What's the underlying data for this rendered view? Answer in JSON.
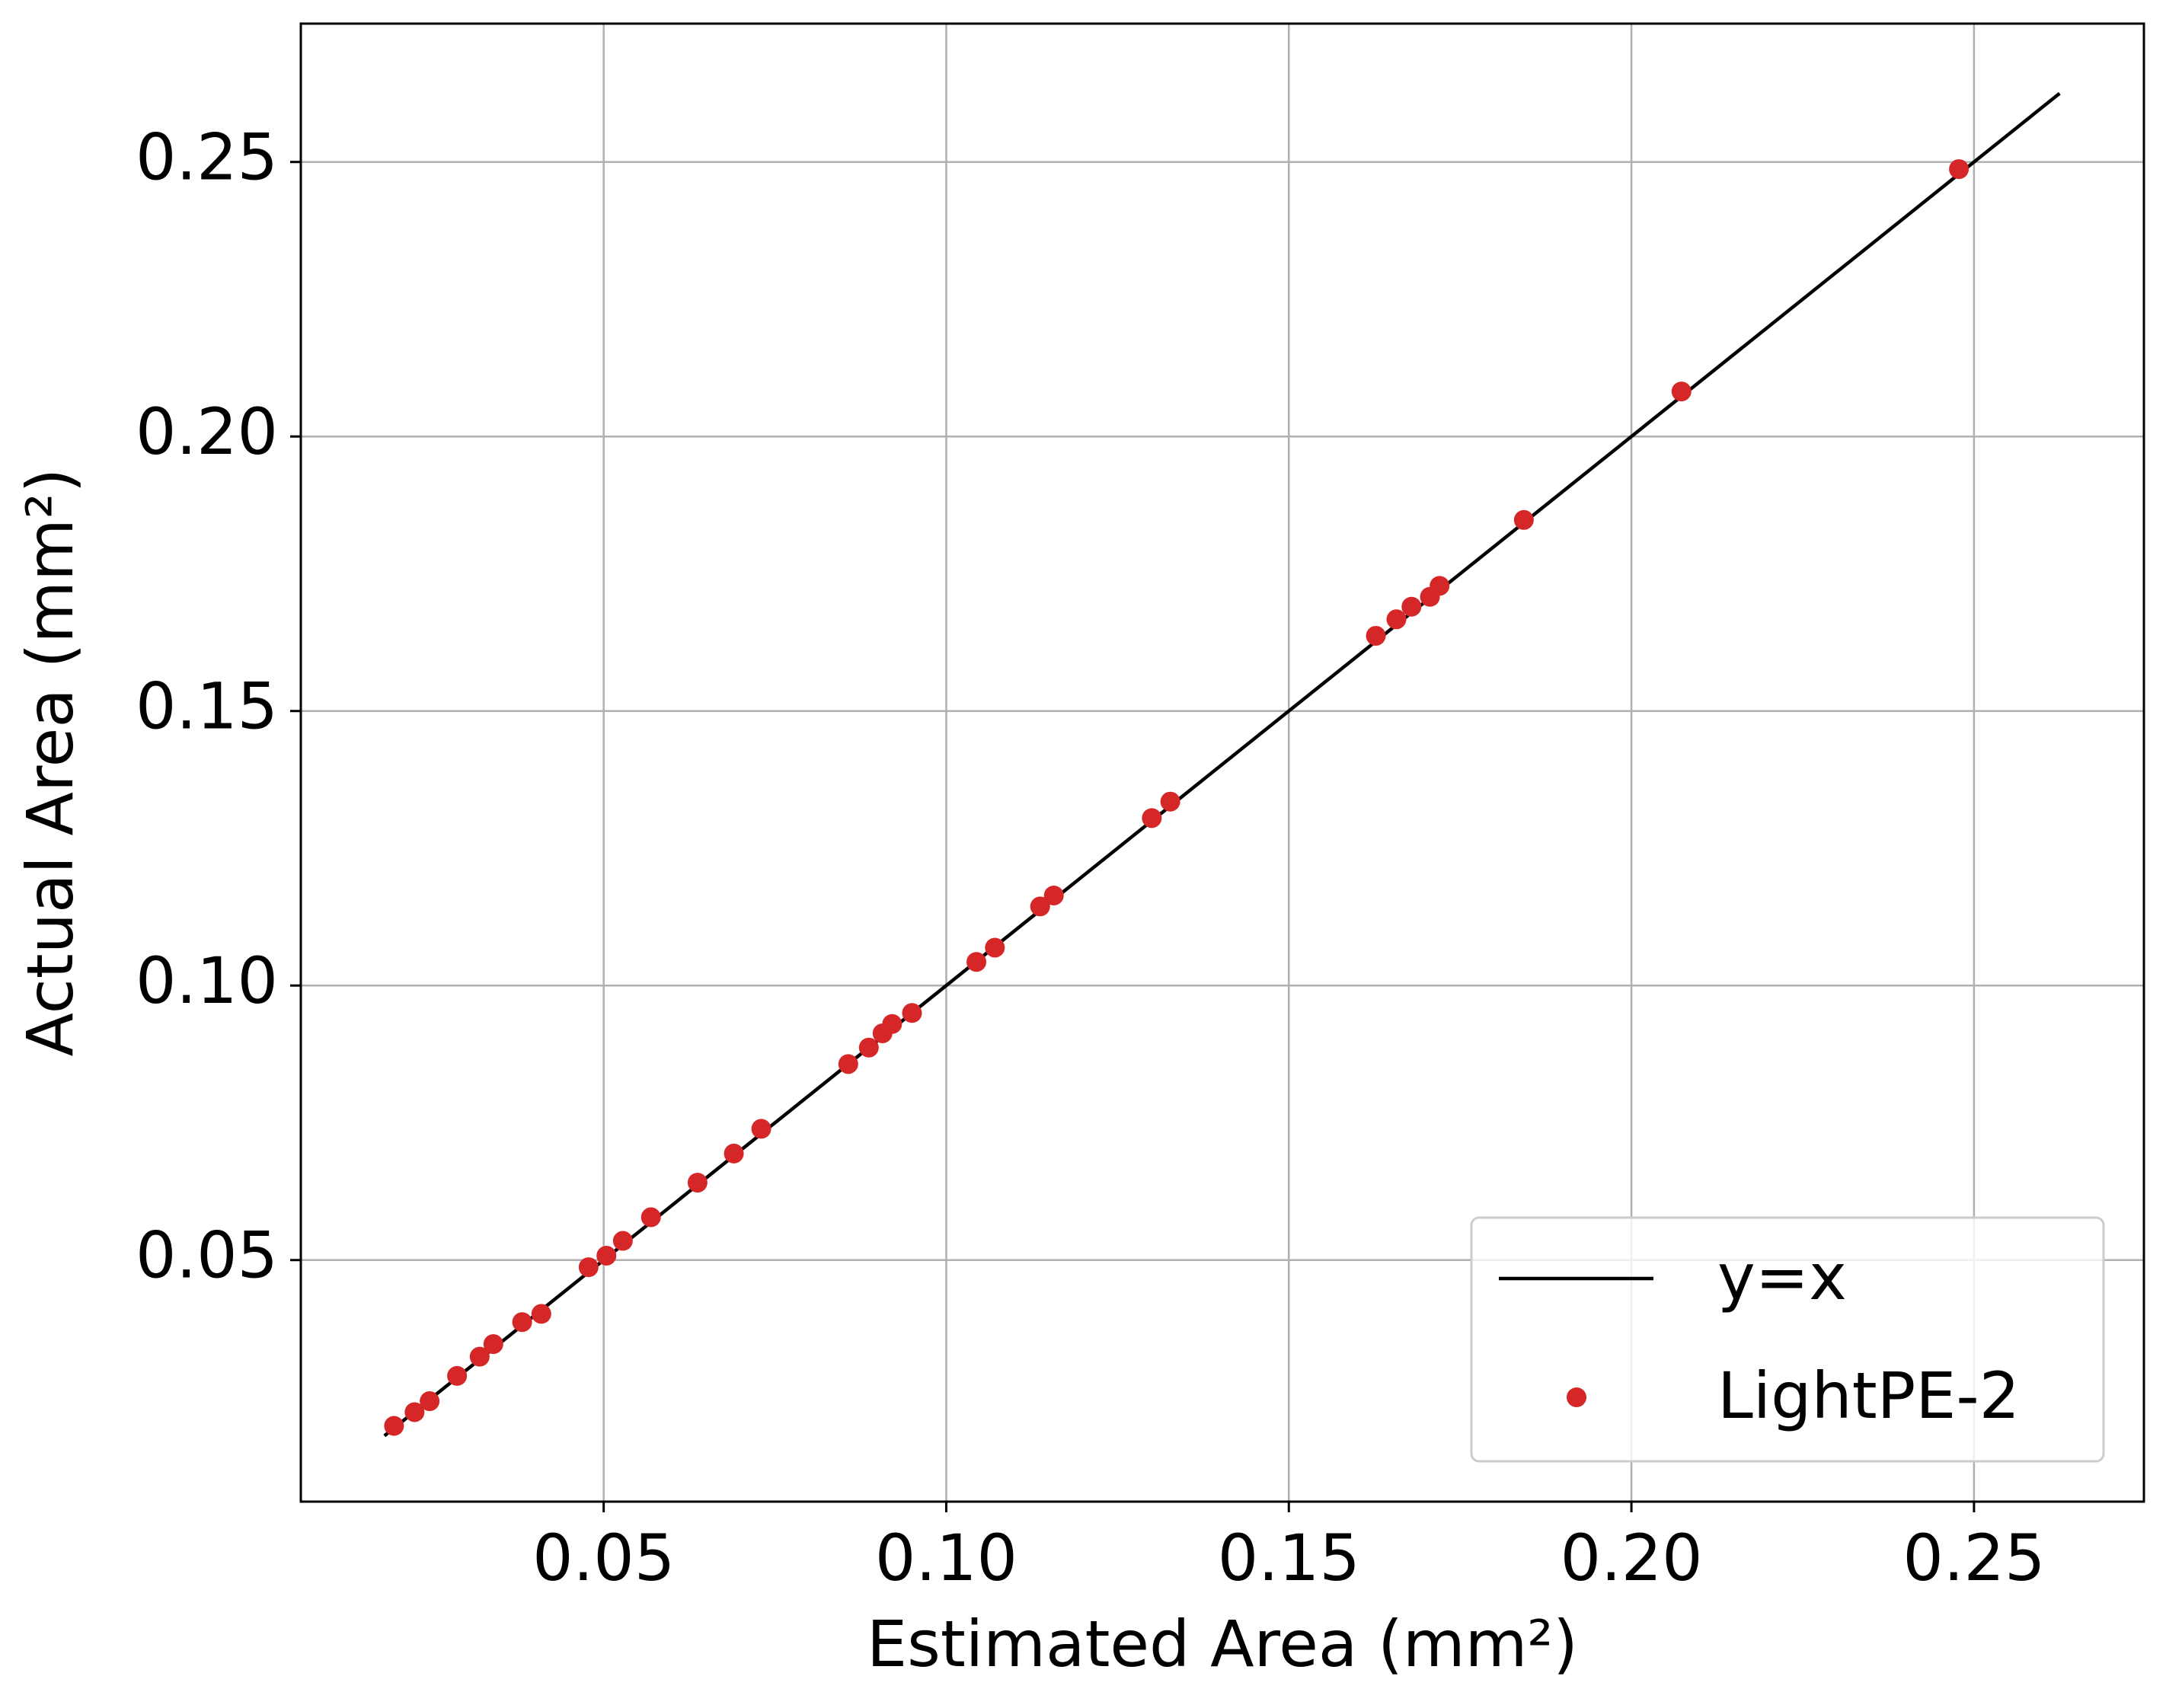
{
  "chart_data": {
    "type": "scatter",
    "xlabel": "Estimated Area (mm²)",
    "ylabel": "Actual Area (mm²)",
    "xlim": [
      0.0058,
      0.2748
    ],
    "ylim": [
      0.006,
      0.2752
    ],
    "xticks": [
      0.05,
      {
        "value": 0.1,
        "label": "0.10"
      },
      0.15,
      {
        "value": 0.2,
        "label": "0.20"
      },
      0.25
    ],
    "yticks": [
      0.05,
      {
        "value": 0.1,
        "label": "0.10"
      },
      0.15,
      {
        "value": 0.2,
        "label": "0.20"
      },
      0.25
    ],
    "grid": true,
    "legend": "lower right",
    "series": [
      {
        "name": "y=x",
        "type": "line",
        "color": "#000000",
        "x": [
          0.018,
          0.2625
        ],
        "values": [
          0.018,
          0.2625
        ]
      },
      {
        "name": "LightPE-2",
        "type": "scatter",
        "color": "#d62728",
        "x": [
          0.0194,
          0.0224,
          0.0246,
          0.0286,
          0.0319,
          0.0339,
          0.0381,
          0.0409,
          0.0478,
          0.0504,
          0.0528,
          0.0569,
          0.0637,
          0.069,
          0.073,
          0.0857,
          0.0887,
          0.0907,
          0.0921,
          0.095,
          0.1044,
          0.1071,
          0.1137,
          0.1157,
          0.13,
          0.1327,
          0.1627,
          0.1657,
          0.1679,
          0.1706,
          0.172,
          0.1843,
          0.2073,
          0.2478
        ],
        "values": [
          0.0198,
          0.0223,
          0.0243,
          0.0289,
          0.0324,
          0.0347,
          0.0387,
          0.0402,
          0.0487,
          0.0508,
          0.0535,
          0.0578,
          0.0641,
          0.0694,
          0.0739,
          0.0857,
          0.0887,
          0.0913,
          0.093,
          0.095,
          0.1043,
          0.1069,
          0.1144,
          0.1164,
          0.1305,
          0.1335,
          0.1637,
          0.1667,
          0.169,
          0.1708,
          0.1728,
          0.1848,
          0.2082,
          0.2487
        ]
      }
    ]
  }
}
